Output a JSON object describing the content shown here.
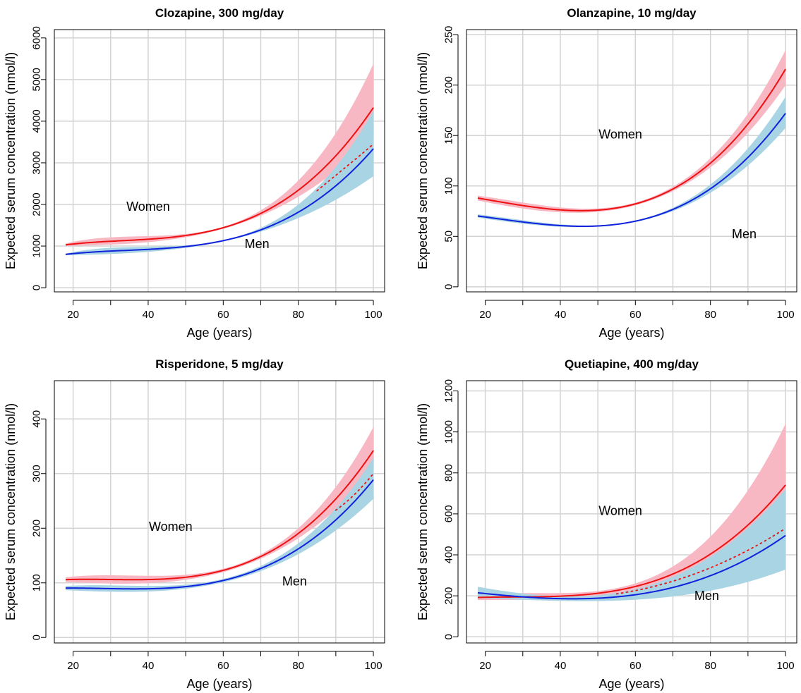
{
  "colors": {
    "women_line": "#ee1111",
    "women_band": "#f7b8c4",
    "men_line": "#1122dd",
    "men_band": "#a8d4e3",
    "grid": "#d3d3d3"
  },
  "chart_data": [
    {
      "type": "line",
      "title": "Clozapine, 300 mg/day",
      "xlabel": "Age (years)",
      "ylabel": "Expected serum concentration (nmol/l)",
      "xlim": [
        15,
        103
      ],
      "ylim": [
        -100,
        6200
      ],
      "xticks": [
        20,
        40,
        60,
        80,
        100
      ],
      "yticks": [
        0,
        1000,
        2000,
        3000,
        4000,
        5000,
        6000
      ],
      "grid": true,
      "x": [
        18,
        30,
        40,
        50,
        60,
        70,
        80,
        85,
        90,
        95,
        100
      ],
      "series": [
        {
          "name": "Women",
          "values": [
            1050,
            1080,
            1150,
            1270,
            1470,
            1800,
            2330,
            2700,
            3150,
            3700,
            4350
          ],
          "lower": [
            1000,
            1030,
            1100,
            1220,
            1410,
            1720,
            2170,
            2480,
            2820,
            3200,
            3600
          ],
          "upper": [
            1110,
            1130,
            1200,
            1320,
            1540,
            1900,
            2550,
            3050,
            3650,
            4450,
            5450
          ]
        },
        {
          "name": "Men",
          "values": [
            820,
            850,
            900,
            1000,
            1160,
            1420,
            1800,
            2080,
            2420,
            2850,
            3370
          ],
          "lower": [
            780,
            810,
            860,
            960,
            1110,
            1350,
            1670,
            1880,
            2110,
            2380,
            2680
          ],
          "upper": [
            860,
            890,
            940,
            1040,
            1210,
            1500,
            1950,
            2350,
            2870,
            3500,
            4300
          ]
        }
      ],
      "dotted": {
        "x": [
          85,
          90,
          95,
          100
        ],
        "values": [
          2330,
          2700,
          3070,
          3450
        ]
      },
      "annotations": [
        {
          "text": "Women",
          "x": 40,
          "y": 1850
        },
        {
          "text": "Men",
          "x": 69,
          "y": 950
        }
      ]
    },
    {
      "type": "line",
      "title": "Olanzapine, 10 mg/day",
      "xlabel": "Age (years)",
      "ylabel": "Expected serum concentration (nmol/l)",
      "xlim": [
        15,
        103
      ],
      "ylim": [
        -5,
        255
      ],
      "xticks": [
        20,
        40,
        60,
        80,
        100
      ],
      "yticks": [
        0,
        50,
        100,
        150,
        200,
        250
      ],
      "grid": true,
      "x": [
        18,
        30,
        40,
        50,
        60,
        70,
        80,
        90,
        100
      ],
      "series": [
        {
          "name": "Women",
          "values": [
            89,
            79,
            75,
            77,
            84,
            98,
            121,
            160,
            217
          ],
          "lower": [
            86,
            77,
            73,
            75,
            82,
            95,
            117,
            153,
            200
          ],
          "upper": [
            92,
            81,
            77,
            79,
            86,
            101,
            126,
            168,
            237
          ]
        },
        {
          "name": "Men",
          "values": [
            71,
            63,
            60,
            61,
            66,
            78,
            96,
            127,
            173
          ],
          "lower": [
            69,
            62,
            59,
            60,
            65,
            76,
            92,
            120,
            158
          ],
          "upper": [
            73,
            64,
            61,
            62,
            67,
            80,
            100,
            135,
            190
          ]
        }
      ],
      "annotations": [
        {
          "text": "Women",
          "x": 56,
          "y": 147
        },
        {
          "text": "Men",
          "x": 89,
          "y": 48
        }
      ]
    },
    {
      "type": "line",
      "title": "Risperidone, 5 mg/day",
      "xlabel": "Age (years)",
      "ylabel": "Expected serum concentration (nmol/l)",
      "xlim": [
        15,
        103
      ],
      "ylim": [
        -10,
        470
      ],
      "xticks": [
        20,
        40,
        60,
        80,
        100
      ],
      "yticks": [
        0,
        100,
        200,
        300,
        400
      ],
      "grid": true,
      "x": [
        18,
        30,
        40,
        50,
        60,
        70,
        80,
        90,
        95,
        100
      ],
      "series": [
        {
          "name": "Women",
          "values": [
            108,
            103,
            104,
            111,
            126,
            151,
            190,
            248,
            292,
            347
          ],
          "lower": [
            102,
            98,
            99,
            106,
            120,
            145,
            181,
            233,
            268,
            305
          ],
          "upper": [
            114,
            108,
            109,
            116,
            132,
            157,
            200,
            265,
            320,
            395
          ]
        },
        {
          "name": "Men",
          "values": [
            92,
            87,
            88,
            94,
            106,
            128,
            162,
            212,
            247,
            292
          ],
          "lower": [
            87,
            83,
            84,
            90,
            101,
            122,
            153,
            195,
            222,
            255
          ],
          "upper": [
            97,
            91,
            92,
            98,
            111,
            134,
            172,
            230,
            275,
            335
          ]
        }
      ],
      "dotted": {
        "x": [
          90,
          95,
          100
        ],
        "values": [
          233,
          262,
          300
        ]
      },
      "annotations": [
        {
          "text": "Women",
          "x": 46,
          "y": 195
        },
        {
          "text": "Men",
          "x": 79,
          "y": 95
        }
      ]
    },
    {
      "type": "line",
      "title": "Quetiapine, 400 mg/day",
      "xlabel": "Age (years)",
      "ylabel": "Expected serum concentration (nmol/l)",
      "xlim": [
        15,
        103
      ],
      "ylim": [
        -30,
        1250
      ],
      "xticks": [
        20,
        40,
        60,
        80,
        100
      ],
      "yticks": [
        0,
        200,
        400,
        600,
        800,
        1000,
        1200
      ],
      "grid": true,
      "x": [
        18,
        30,
        40,
        50,
        60,
        70,
        80,
        90,
        100
      ],
      "series": [
        {
          "name": "Women",
          "values": [
            195,
            190,
            195,
            215,
            250,
            310,
            400,
            540,
            745
          ],
          "lower": [
            180,
            180,
            185,
            200,
            230,
            275,
            340,
            430,
            560
          ],
          "upper": [
            210,
            200,
            205,
            230,
            275,
            350,
            480,
            700,
            1050
          ]
        },
        {
          "name": "Men",
          "values": [
            215,
            195,
            185,
            190,
            205,
            240,
            300,
            380,
            495
          ],
          "lower": [
            190,
            180,
            175,
            175,
            180,
            200,
            225,
            265,
            330
          ],
          "upper": [
            245,
            210,
            195,
            205,
            235,
            290,
            390,
            530,
            720
          ]
        }
      ],
      "dotted": {
        "x": [
          55,
          60,
          70,
          80,
          90,
          100
        ],
        "values": [
          210,
          225,
          270,
          340,
          420,
          530
        ]
      },
      "annotations": [
        {
          "text": "Women",
          "x": 56,
          "y": 595
        },
        {
          "text": "Men",
          "x": 79,
          "y": 180
        }
      ]
    }
  ]
}
